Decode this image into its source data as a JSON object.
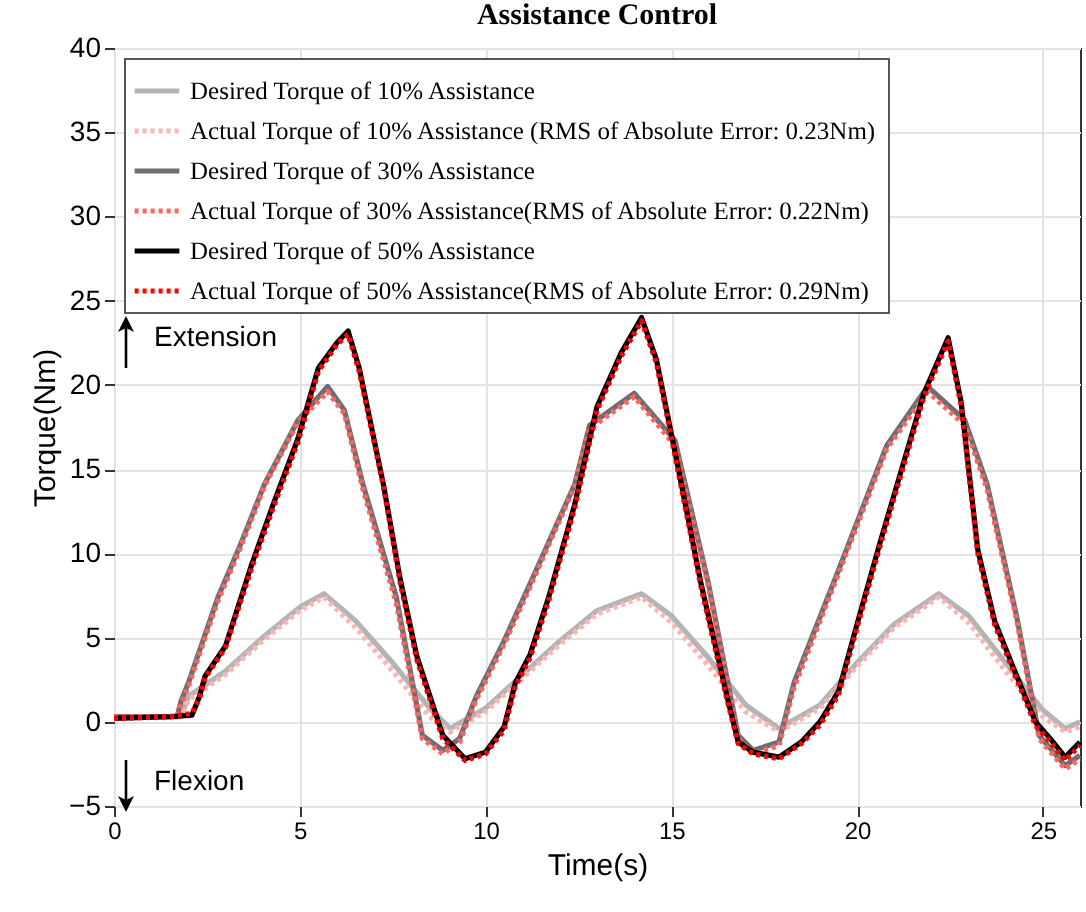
{
  "chart_data": {
    "type": "line",
    "title": "Assistance Control",
    "xlabel": "Time(s)",
    "ylabel": "Torque(Nm)",
    "xlim": [
      0,
      26
    ],
    "ylim": [
      -5,
      40
    ],
    "xticks": [
      0,
      5,
      10,
      15,
      20,
      25
    ],
    "yticks": [
      -5,
      0,
      5,
      10,
      15,
      20,
      25,
      30,
      35,
      40
    ],
    "grid": true,
    "legend": "top left",
    "annotations": [
      "Extension",
      "Flexion"
    ],
    "series": [
      {
        "name": "Desired Torque of 10% Assistance",
        "color": "#b4b4b4",
        "line_style": "solid",
        "x": [
          0,
          1.8,
          2,
          3,
          4,
          5,
          5.65,
          6.5,
          7.5,
          8.5,
          9.05,
          10,
          11,
          12,
          13,
          14.2,
          15,
          16,
          17,
          17.9,
          19,
          20,
          21,
          22.2,
          23,
          24,
          25,
          25.6,
          26
        ],
        "values": [
          0.3,
          0.3,
          1.5,
          3,
          5,
          6.8,
          7.6,
          6,
          3.5,
          0.8,
          -0.4,
          0.8,
          2.8,
          4.8,
          6.6,
          7.6,
          6.3,
          3.8,
          1,
          -0.4,
          1,
          3.5,
          5.8,
          7.6,
          6.3,
          3.5,
          0.7,
          -0.4,
          0
        ]
      },
      {
        "name": "Actual Torque of 10% Assistance (RMS of Absolute Error: 0.23Nm)",
        "color": "#ffb4b4",
        "line_style": "dotted",
        "x": [
          0,
          1.8,
          2,
          3,
          4,
          5,
          5.65,
          6.5,
          7.5,
          8.5,
          9.05,
          10,
          11,
          12,
          13,
          14.2,
          15,
          16,
          17,
          17.9,
          19,
          20,
          21,
          22.2,
          23,
          24,
          25,
          25.6,
          26
        ],
        "values": [
          0.3,
          0.3,
          1.3,
          2.8,
          4.8,
          6.6,
          7.4,
          5.6,
          3,
          0.3,
          -0.6,
          0.6,
          2.6,
          4.6,
          6.4,
          7.4,
          5.9,
          3.3,
          0.6,
          -0.6,
          0.8,
          3.3,
          5.6,
          7.4,
          5.9,
          3,
          0.3,
          -0.6,
          -0.3
        ]
      },
      {
        "name": "Desired Torque of 30% Assistance",
        "color": "#6e6e6e",
        "line_style": "solid",
        "x": [
          0,
          1.7,
          1.8,
          2,
          2.8,
          3.4,
          4.05,
          4.95,
          5.75,
          6.2,
          6.7,
          7.6,
          8.3,
          8.85,
          9.3,
          9.75,
          10.5,
          11.2,
          12.4,
          12.8,
          14,
          15.1,
          16,
          16.8,
          17.2,
          17.9,
          18.3,
          19.5,
          20.8,
          21.9,
          22.9,
          23.5,
          24.3,
          24.9,
          25.6,
          26
        ],
        "values": [
          0.3,
          0.3,
          1.2,
          2.3,
          7.4,
          10.5,
          14.1,
          17.9,
          19.9,
          18.5,
          14.1,
          7.4,
          -0.8,
          -1.7,
          -1,
          1.5,
          4.8,
          8.2,
          14.1,
          17.6,
          19.5,
          16.7,
          8.2,
          -0.8,
          -1.7,
          -1.2,
          2.3,
          9,
          16.4,
          19.9,
          17.9,
          14.1,
          6.2,
          -0.8,
          -2.6,
          -2
        ]
      },
      {
        "name": "Actual Torque of 30% Assistance(RMS of Absolute Error: 0.22Nm)",
        "color": "#ff6464",
        "line_style": "dotted",
        "x": [
          0,
          1.7,
          1.8,
          2,
          2.8,
          3.4,
          4.05,
          4.95,
          5.75,
          6.2,
          6.7,
          7.6,
          8.3,
          8.85,
          9.3,
          9.75,
          10.5,
          11.2,
          12.4,
          12.8,
          14,
          15.1,
          16,
          16.8,
          17.2,
          17.9,
          18.3,
          19.5,
          20.8,
          21.9,
          22.9,
          23.5,
          24.3,
          24.9,
          25.6,
          26
        ],
        "values": [
          0.3,
          0.3,
          1,
          2.1,
          7.2,
          10.3,
          14,
          17.8,
          19.6,
          18.3,
          13.8,
          7,
          -1,
          -1.9,
          -1.2,
          1.3,
          4.6,
          8,
          14,
          17.4,
          19.3,
          16.4,
          8,
          -1,
          -1.9,
          -1.4,
          2,
          8.8,
          16.2,
          19.6,
          17.6,
          13.8,
          6,
          -1,
          -2.8,
          -2.2
        ]
      },
      {
        "name": "Desired Torque of 50% Assistance",
        "color": "#000000",
        "line_style": "solid",
        "x": [
          0,
          1.5,
          2.1,
          2.3,
          2.45,
          3,
          3.7,
          4.3,
          4.95,
          5.5,
          6,
          6.3,
          6.6,
          7.25,
          7.7,
          8.15,
          8.85,
          9.45,
          10,
          10.5,
          10.8,
          11.2,
          11.7,
          12.4,
          13,
          13.65,
          14.2,
          14.6,
          15.1,
          15.8,
          16.5,
          16.8,
          17.2,
          17.9,
          18.5,
          19,
          19.5,
          20.05,
          20.6,
          21.2,
          21.8,
          22.45,
          22.8,
          23.25,
          23.7,
          24.3,
          24.8,
          25.2,
          25.6,
          26
        ],
        "values": [
          0.2,
          0.3,
          0.4,
          1.5,
          2.7,
          4.5,
          9.3,
          13,
          16.8,
          21,
          22.5,
          23.2,
          21,
          14.1,
          8.5,
          3.9,
          -0.8,
          -2.2,
          -1.8,
          -0.3,
          2.3,
          4,
          7.4,
          12.9,
          18.7,
          21.9,
          24,
          21.5,
          16,
          8.2,
          1.5,
          -1.2,
          -1.8,
          -2.1,
          -1.2,
          0,
          1.8,
          6.2,
          10.5,
          15,
          19.5,
          22.8,
          19,
          10.2,
          6,
          2.7,
          0,
          -1,
          -2.1,
          -1.2
        ]
      },
      {
        "name": "Actual Torque of 50% Assistance(RMS of Absolute Error: 0.29Nm)",
        "color": "#ff0000",
        "line_style": "dotted",
        "x": [
          0,
          1.5,
          2.1,
          2.3,
          2.45,
          3,
          3.7,
          4.3,
          4.95,
          5.5,
          6,
          6.3,
          6.6,
          7.25,
          7.7,
          8.15,
          8.85,
          9.45,
          10,
          10.5,
          10.8,
          11.2,
          11.7,
          12.4,
          13,
          13.65,
          14.2,
          14.6,
          15.1,
          15.8,
          16.5,
          16.8,
          17.2,
          17.9,
          18.5,
          19,
          19.5,
          20.05,
          20.6,
          21.2,
          21.8,
          22.45,
          22.8,
          23.25,
          23.7,
          24.3,
          24.8,
          25.2,
          25.6,
          26
        ],
        "values": [
          0.2,
          0.3,
          0.5,
          1.4,
          2.6,
          4.4,
          9.1,
          12.8,
          16.6,
          20.8,
          22.4,
          23,
          20.8,
          14,
          8.3,
          3.7,
          -1,
          -2.3,
          -1.9,
          -0.5,
          2.1,
          3.8,
          7.2,
          12.7,
          18.5,
          21.7,
          23.8,
          21.3,
          15.8,
          8,
          1.3,
          -1.3,
          -1.9,
          -2.2,
          -1.3,
          -0.2,
          1.6,
          6,
          10.3,
          14.8,
          19.3,
          22.6,
          18.8,
          10,
          5.8,
          2.5,
          -0.2,
          -1.2,
          -2.3,
          -1.4
        ]
      }
    ]
  }
}
